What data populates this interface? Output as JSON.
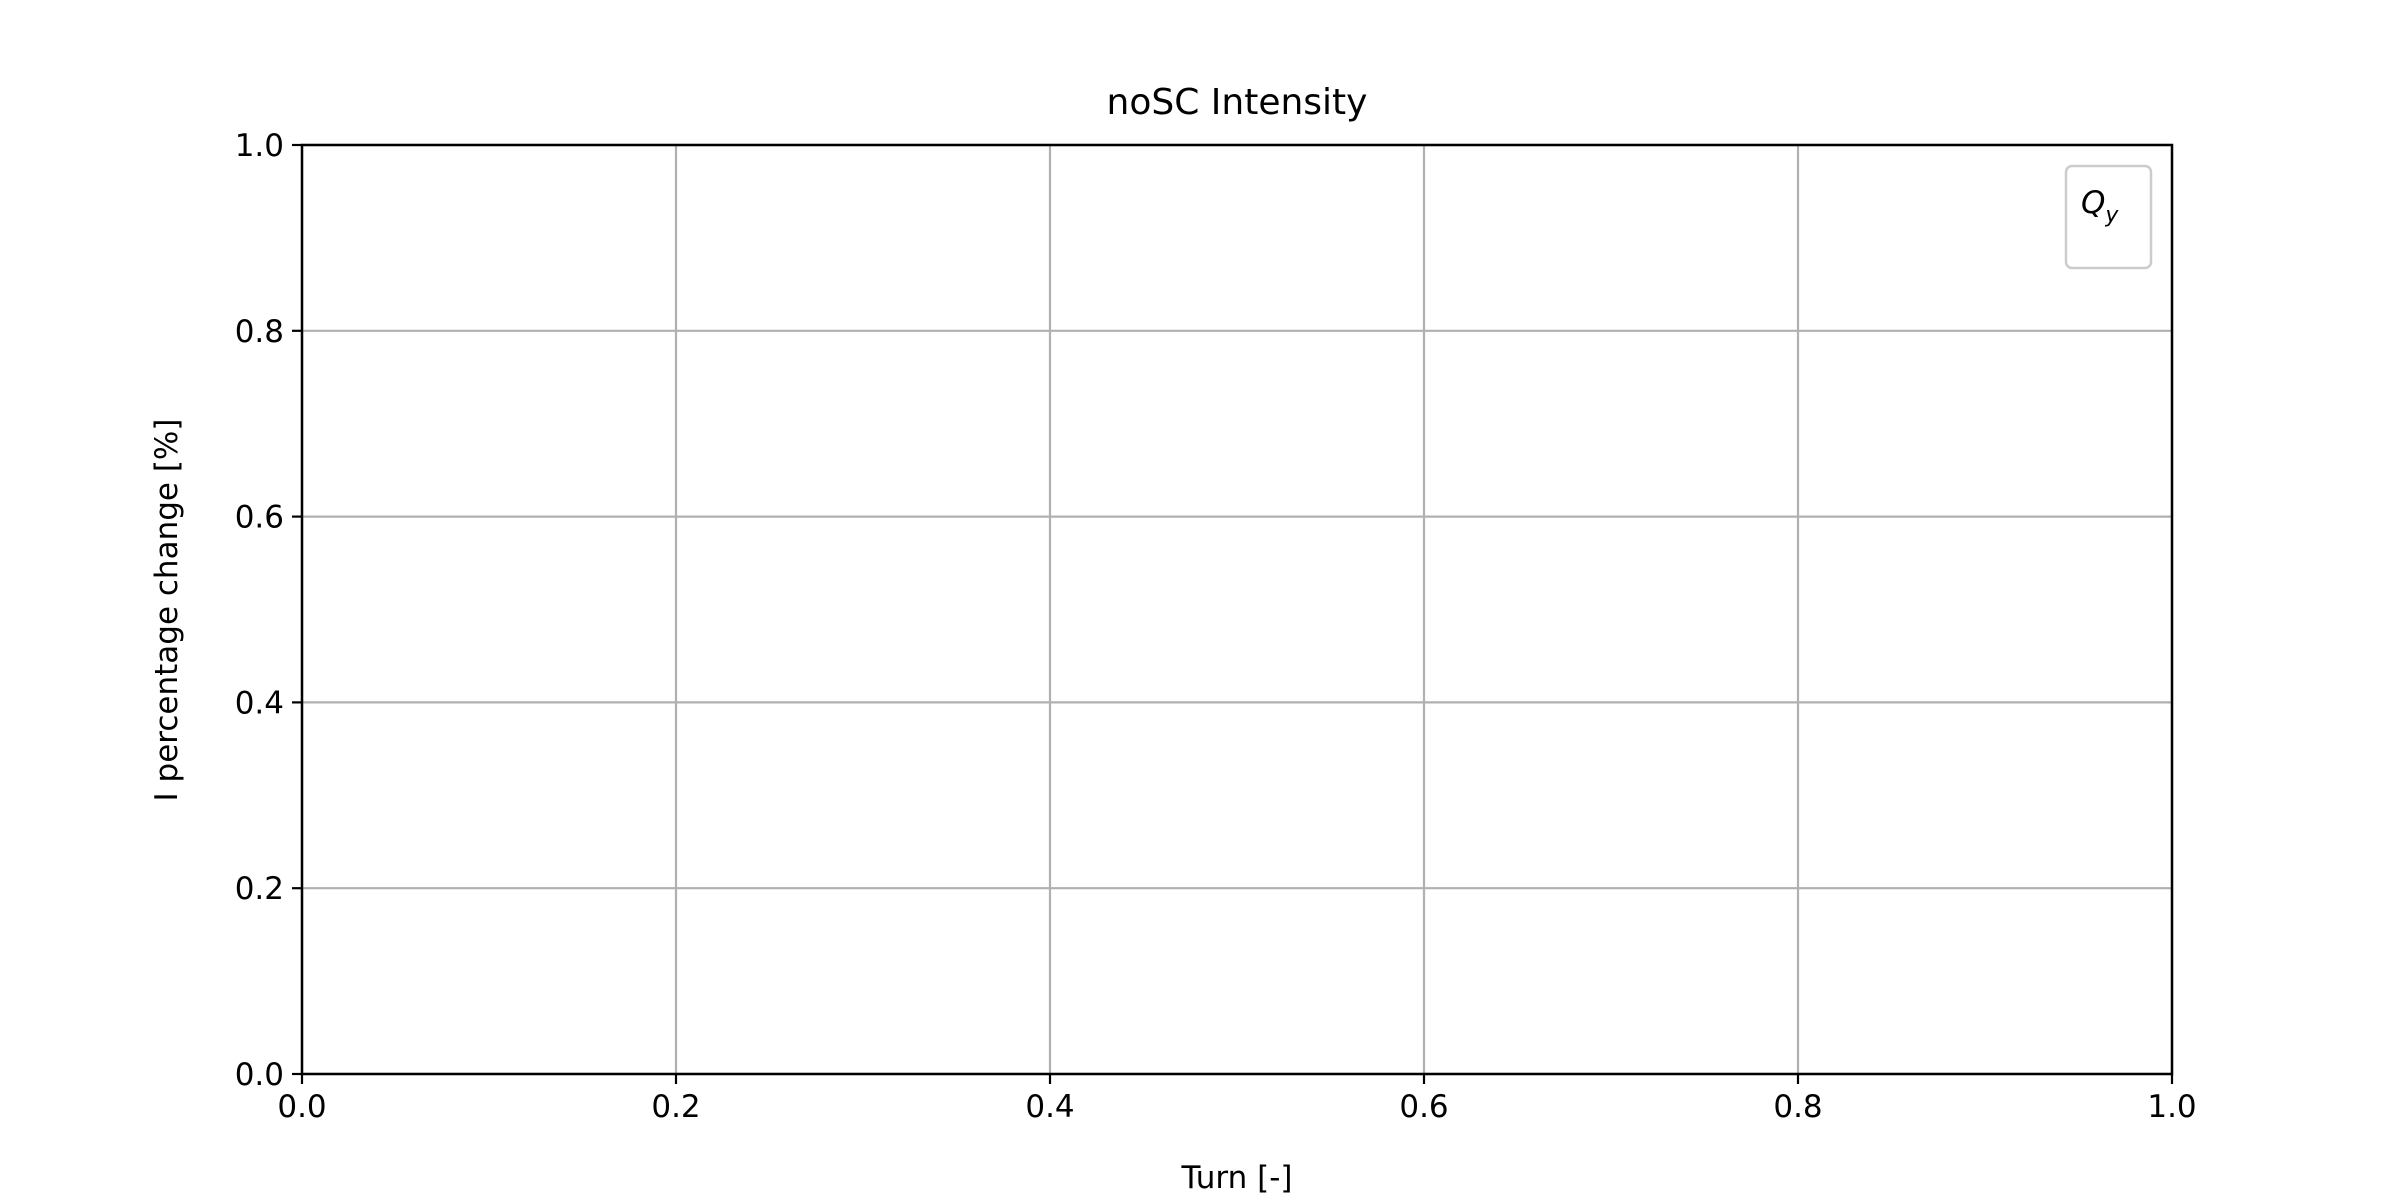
{
  "chart_data": {
    "type": "line",
    "title": "noSC Intensity",
    "xlabel": "Turn [-]",
    "ylabel": "I percentage change [%]",
    "xlim": [
      0.0,
      1.0
    ],
    "ylim": [
      0.0,
      1.0
    ],
    "xticks": [
      "0.0",
      "0.2",
      "0.4",
      "0.6",
      "0.8",
      "1.0"
    ],
    "yticks": [
      "0.0",
      "0.2",
      "0.4",
      "0.6",
      "0.8",
      "1.0"
    ],
    "grid": true,
    "legend": {
      "placement": "top-right",
      "entries": [
        {
          "base": "Q",
          "sub": "y"
        }
      ]
    },
    "series": []
  },
  "colors": {
    "axis": "#000000",
    "grid": "#b0b0b0",
    "legend_border": "#cccccc",
    "background": "#ffffff"
  }
}
